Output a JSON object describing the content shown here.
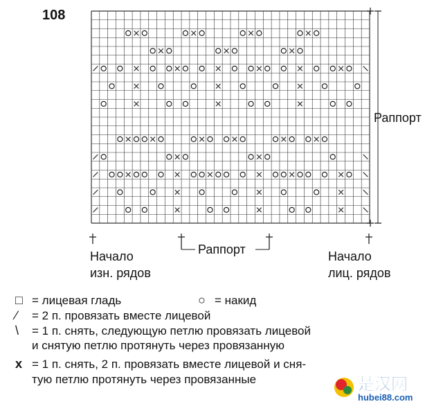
{
  "pattern_number": "108",
  "repeat_label_right": "Раппорт",
  "repeat_label_bottom": "Раппорт",
  "start_wrong_side": [
    "Начало",
    "изн. рядов"
  ],
  "start_right_side": [
    "Начало",
    "лиц. рядов"
  ],
  "legend": [
    {
      "symbol": "□",
      "text": "= лицевая гладь"
    },
    {
      "symbol": "○",
      "text": "= накид"
    },
    {
      "symbol": "∕",
      "text": "= 2 п. провязать вместе лицевой"
    },
    {
      "symbol": "\\",
      "text": "= 1 п. снять, следующую петлю провязать лицевой"
    },
    {
      "symbol": "",
      "text": "и снятую петлю протянуть через провязанную"
    },
    {
      "symbol": "x",
      "text": "= 1 п. снять, 2 п. провязать вместе лицевой и сня-"
    },
    {
      "symbol": "",
      "text": "тую петлю протянуть через провязанные"
    }
  ],
  "watermark": {
    "chinese": "楚汉网",
    "url": "hubei88.com"
  },
  "chart_grid": {
    "columns": 34,
    "rows": 24,
    "symbols_by_row_from_top": [
      [],
      [],
      [
        [
          4,
          "o"
        ],
        [
          5,
          "x"
        ],
        [
          6,
          "o"
        ],
        [
          11,
          "o"
        ],
        [
          12,
          "x"
        ],
        [
          13,
          "o"
        ],
        [
          18,
          "o"
        ],
        [
          19,
          "x"
        ],
        [
          20,
          "o"
        ],
        [
          25,
          "o"
        ],
        [
          26,
          "x"
        ],
        [
          27,
          "o"
        ]
      ],
      [],
      [
        [
          7,
          "o"
        ],
        [
          8,
          "x"
        ],
        [
          9,
          "o"
        ],
        [
          15,
          "o"
        ],
        [
          16,
          "x"
        ],
        [
          17,
          "o"
        ],
        [
          23,
          "o"
        ],
        [
          24,
          "x"
        ],
        [
          25,
          "o"
        ]
      ],
      [],
      [
        [
          0,
          "/"
        ],
        [
          1,
          "o"
        ],
        [
          3,
          "o"
        ],
        [
          5,
          "x"
        ],
        [
          7,
          "o"
        ],
        [
          9,
          "o"
        ],
        [
          10,
          "x"
        ],
        [
          11,
          "o"
        ],
        [
          13,
          "o"
        ],
        [
          15,
          "x"
        ],
        [
          17,
          "o"
        ],
        [
          19,
          "o"
        ],
        [
          20,
          "x"
        ],
        [
          21,
          "o"
        ],
        [
          23,
          "o"
        ],
        [
          25,
          "x"
        ],
        [
          27,
          "o"
        ],
        [
          29,
          "o"
        ],
        [
          30,
          "x"
        ],
        [
          31,
          "o"
        ],
        [
          33,
          "\\"
        ]
      ],
      [],
      [
        [
          2,
          "o"
        ],
        [
          5,
          "x"
        ],
        [
          8,
          "o"
        ],
        [
          12,
          "o"
        ],
        [
          15,
          "x"
        ],
        [
          18,
          "o"
        ],
        [
          22,
          "o"
        ],
        [
          25,
          "x"
        ],
        [
          28,
          "o"
        ],
        [
          32,
          "o"
        ]
      ],
      [],
      [
        [
          1,
          "o"
        ],
        [
          5,
          "x"
        ],
        [
          9,
          "o"
        ],
        [
          11,
          "o"
        ],
        [
          15,
          "x"
        ],
        [
          19,
          "o"
        ],
        [
          21,
          "o"
        ],
        [
          25,
          "x"
        ],
        [
          29,
          "o"
        ],
        [
          31,
          "o"
        ]
      ],
      [],
      [],
      [],
      [
        [
          3,
          "o"
        ],
        [
          4,
          "x"
        ],
        [
          5,
          "o"
        ],
        [
          6,
          "o"
        ],
        [
          7,
          "x"
        ],
        [
          8,
          "o"
        ],
        [
          12,
          "o"
        ],
        [
          13,
          "x"
        ],
        [
          14,
          "o"
        ],
        [
          16,
          "o"
        ],
        [
          17,
          "x"
        ],
        [
          18,
          "o"
        ],
        [
          22,
          "o"
        ],
        [
          23,
          "x"
        ],
        [
          24,
          "o"
        ],
        [
          26,
          "o"
        ],
        [
          27,
          "x"
        ],
        [
          28,
          "o"
        ]
      ],
      [],
      [
        [
          0,
          "/"
        ],
        [
          1,
          "o"
        ],
        [
          9,
          "o"
        ],
        [
          10,
          "x"
        ],
        [
          11,
          "o"
        ],
        [
          19,
          "o"
        ],
        [
          20,
          "x"
        ],
        [
          21,
          "o"
        ],
        [
          29,
          "o"
        ],
        [
          33,
          "\\"
        ]
      ],
      [],
      [
        [
          0,
          "/"
        ],
        [
          2,
          "o"
        ],
        [
          3,
          "o"
        ],
        [
          4,
          "x"
        ],
        [
          5,
          "o"
        ],
        [
          6,
          "o"
        ],
        [
          8,
          "o"
        ],
        [
          10,
          "x"
        ],
        [
          12,
          "o"
        ],
        [
          13,
          "o"
        ],
        [
          14,
          "x"
        ],
        [
          15,
          "o"
        ],
        [
          16,
          "o"
        ],
        [
          18,
          "o"
        ],
        [
          20,
          "x"
        ],
        [
          22,
          "o"
        ],
        [
          23,
          "o"
        ],
        [
          24,
          "x"
        ],
        [
          25,
          "o"
        ],
        [
          26,
          "o"
        ],
        [
          28,
          "o"
        ],
        [
          30,
          "x"
        ],
        [
          31,
          "o"
        ],
        [
          33,
          "\\"
        ]
      ],
      [],
      [
        [
          0,
          "/"
        ],
        [
          3,
          "o"
        ],
        [
          7,
          "o"
        ],
        [
          10,
          "x"
        ],
        [
          13,
          "o"
        ],
        [
          17,
          "o"
        ],
        [
          20,
          "x"
        ],
        [
          23,
          "o"
        ],
        [
          27,
          "o"
        ],
        [
          30,
          "x"
        ],
        [
          33,
          "\\"
        ]
      ],
      [],
      [
        [
          0,
          "/"
        ],
        [
          4,
          "o"
        ],
        [
          6,
          "o"
        ],
        [
          10,
          "x"
        ],
        [
          14,
          "o"
        ],
        [
          16,
          "o"
        ],
        [
          20,
          "x"
        ],
        [
          24,
          "o"
        ],
        [
          26,
          "o"
        ],
        [
          30,
          "x"
        ],
        [
          33,
          "\\"
        ]
      ],
      []
    ]
  }
}
